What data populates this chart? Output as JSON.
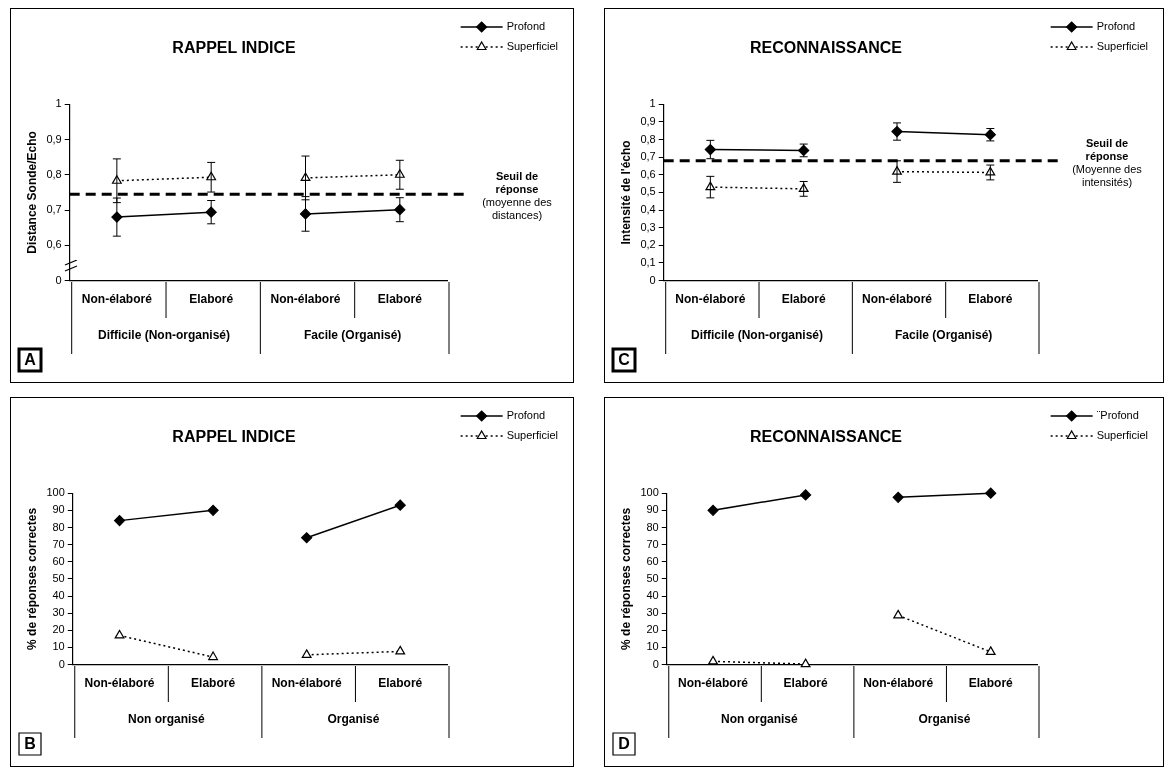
{
  "chart_data": [
    {
      "type": "line",
      "title": "RAPPEL INDICE",
      "ylabel": "Distance Sonde/Echo",
      "categories": [
        "Non-élaboré",
        "Elaboré",
        "Non-élaboré",
        "Elaboré"
      ],
      "series": [
        {
          "name": "Profond",
          "color": "#000000",
          "marker": "diamond",
          "line_style": "solid",
          "values": [
            0.68,
            0.694,
            0.689,
            0.701
          ],
          "errors": [
            0.054,
            0.033,
            0.049,
            0.034
          ]
        },
        {
          "name": "Superficiel",
          "color": "#000000",
          "marker": "triangle",
          "line_style": "dotted",
          "values": [
            0.783,
            0.793,
            0.791,
            0.8
          ],
          "errors": [
            0.062,
            0.042,
            0.062,
            0.041
          ]
        }
      ],
      "ylim": [
        0.5,
        1
      ],
      "yticks": [
        {
          "value": 0.5,
          "label": "0"
        },
        {
          "value": 0.6,
          "label": "0,6"
        },
        {
          "value": 0.7,
          "label": "0,7"
        },
        {
          "value": 0.8,
          "label": "0,8"
        },
        {
          "value": 0.9,
          "label": "0,9"
        },
        1
      ],
      "grid": false,
      "legend": "top right",
      "ref_lines": [
        {
          "axis": "y",
          "value": 0.745,
          "label": "Seuil de réponse (moyenne des distances)",
          "color": "#000000",
          "line_style": "dashed"
        }
      ],
      "annotations": [
        "Difficile (Non-organisé)",
        "Facile (Organisé)",
        "A"
      ]
    },
    {
      "type": "line",
      "title": "RECONNAISSANCE",
      "ylabel": "Intensité de l'écho",
      "categories": [
        "Non-élaboré",
        "Elaboré",
        "Non-élaboré",
        "Elaboré"
      ],
      "series": [
        {
          "name": "Profond",
          "color": "#000000",
          "marker": "diamond",
          "line_style": "solid",
          "values": [
            0.743,
            0.738,
            0.845,
            0.827
          ],
          "errors": [
            0.052,
            0.036,
            0.049,
            0.035
          ]
        },
        {
          "name": "Superficiel",
          "color": "#000000",
          "marker": "triangle",
          "line_style": "dotted",
          "values": [
            0.53,
            0.52,
            0.618,
            0.613
          ],
          "errors": [
            0.061,
            0.042,
            0.061,
            0.042
          ]
        }
      ],
      "ylim": [
        0,
        1
      ],
      "yticks": [
        0,
        {
          "value": 0.1,
          "label": "0,1"
        },
        {
          "value": 0.2,
          "label": "0,2"
        },
        {
          "value": 0.3,
          "label": "0,3"
        },
        {
          "value": 0.4,
          "label": "0,4"
        },
        {
          "value": 0.5,
          "label": "0,5"
        },
        {
          "value": 0.6,
          "label": "0,6"
        },
        {
          "value": 0.7,
          "label": "0,7"
        },
        {
          "value": 0.8,
          "label": "0,8"
        },
        {
          "value": 0.9,
          "label": "0,9"
        },
        1
      ],
      "grid": false,
      "legend": "top right",
      "ref_lines": [
        {
          "axis": "y",
          "value": 0.68,
          "label": "Seuil de réponse (Moyenne des intensités)",
          "color": "#000000",
          "line_style": "dashed"
        }
      ],
      "annotations": [
        "Difficile (Non-organisé)",
        "Facile (Organisé)",
        "C"
      ]
    },
    {
      "type": "line",
      "title": "RAPPEL INDICE",
      "ylabel": "% de réponses correctes",
      "categories": [
        "Non-élaboré",
        "Elaboré",
        "Non-élaboré",
        "Elaboré"
      ],
      "series": [
        {
          "name": "Profond",
          "color": "#000000",
          "marker": "diamond",
          "line_style": "solid",
          "values": [
            84,
            90,
            74,
            93
          ]
        },
        {
          "name": "Superficiel",
          "color": "#000000",
          "marker": "triangle",
          "line_style": "dotted",
          "values": [
            17,
            4.4,
            5.7,
            7.7
          ]
        }
      ],
      "ylim": [
        0,
        100
      ],
      "yticks": [
        0,
        10,
        20,
        30,
        40,
        50,
        60,
        70,
        80,
        90,
        100
      ],
      "grid": false,
      "legend": "top right",
      "annotations": [
        "Non organisé",
        "Organisé",
        "B"
      ]
    },
    {
      "type": "line",
      "title": "RECONNAISSANCE",
      "ylabel": "% de réponses correctes",
      "categories": [
        "Non-élaboré",
        "Elaboré",
        "Non-élaboré",
        "Elaboré"
      ],
      "series": [
        {
          "name": "¨Profond",
          "color": "#000000",
          "marker": "diamond",
          "line_style": "solid",
          "values": [
            90,
            99,
            97.6,
            100
          ]
        },
        {
          "name": "Superficiel",
          "color": "#000000",
          "marker": "triangle",
          "line_style": "dotted",
          "values": [
            1.9,
            0.3,
            28.7,
            7.4
          ]
        }
      ],
      "ylim": [
        0,
        100
      ],
      "yticks": [
        0,
        10,
        20,
        30,
        40,
        50,
        60,
        70,
        80,
        90,
        100
      ],
      "grid": false,
      "legend": "top right",
      "annotations": [
        "Non organisé",
        "Organisé",
        "D"
      ]
    }
  ]
}
